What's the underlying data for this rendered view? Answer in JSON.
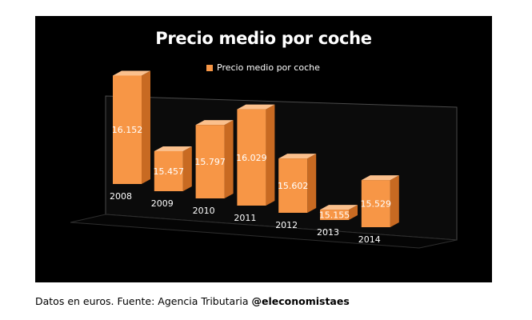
{
  "chart_data": {
    "type": "bar",
    "title": "Precio medio por coche",
    "categories": [
      "2008",
      "2009",
      "2010",
      "2011",
      "2012",
      "2013",
      "2014"
    ],
    "series": [
      {
        "name": "Precio medio por coche",
        "values": [
          16152,
          15457,
          15797,
          16029,
          15602,
          15155,
          15529
        ],
        "labels": [
          "16.152",
          "15.457",
          "15.797",
          "16.029",
          "15.602",
          "15.155",
          "15.529"
        ]
      }
    ],
    "legend_position": "top",
    "colors": {
      "bar_front": "#f79646",
      "bar_side": "#c86a22",
      "bar_top": "#fbc08d",
      "background": "#000000"
    }
  },
  "footnote": {
    "text": "Datos en euros. Fuente: Agencia Tributaria ",
    "handle": "@eleconomistaes"
  }
}
